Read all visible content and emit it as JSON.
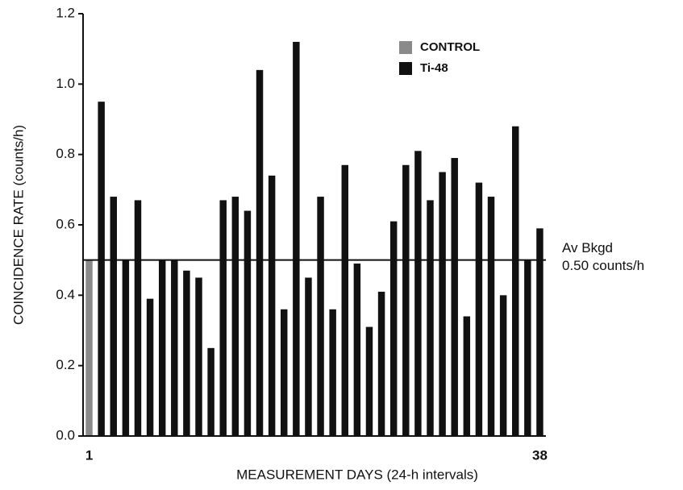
{
  "chart_data": {
    "type": "bar",
    "x_label": "MEASUREMENT DAYS (24-h intervals)",
    "y_label": "COINCIDENCE RATE  (counts/h)",
    "categories": [
      "1",
      null,
      null,
      null,
      null,
      null,
      null,
      null,
      null,
      null,
      null,
      null,
      null,
      null,
      null,
      null,
      null,
      null,
      null,
      null,
      null,
      null,
      null,
      null,
      null,
      null,
      null,
      null,
      null,
      null,
      null,
      null,
      null,
      null,
      null,
      null,
      null,
      "38"
    ],
    "series": [
      {
        "name": "CONTROL",
        "color": "#8a8a8a",
        "values": [
          0.5,
          null,
          null,
          null,
          null,
          null,
          null,
          null,
          null,
          null,
          null,
          null,
          null,
          null,
          null,
          null,
          null,
          null,
          null,
          null,
          null,
          null,
          null,
          null,
          null,
          null,
          null,
          null,
          null,
          null,
          null,
          null,
          null,
          null,
          null,
          null,
          null,
          null
        ]
      },
      {
        "name": "Ti-48",
        "color": "#111111",
        "values": [
          null,
          0.95,
          0.68,
          0.5,
          0.67,
          0.39,
          0.5,
          0.5,
          0.47,
          0.45,
          0.25,
          0.67,
          0.68,
          0.64,
          1.04,
          0.74,
          0.36,
          1.12,
          0.45,
          0.68,
          0.36,
          0.77,
          0.49,
          0.31,
          0.41,
          0.61,
          0.77,
          0.81,
          0.67,
          0.75,
          0.79,
          0.34,
          0.72,
          0.68,
          0.4,
          0.88,
          0.5,
          0.59
        ]
      }
    ],
    "ylim": [
      0,
      1.2
    ],
    "yticks": [
      {
        "value": 0,
        "label": "0.0"
      },
      0.2,
      0.4,
      0.6,
      0.8,
      {
        "value": 1,
        "label": "1.0"
      },
      1.2
    ],
    "reference_line": {
      "value": 0.5,
      "label": "Av Bkgd",
      "sublabel": "0.50 counts/h"
    },
    "legend": "upper right",
    "grid": false
  }
}
